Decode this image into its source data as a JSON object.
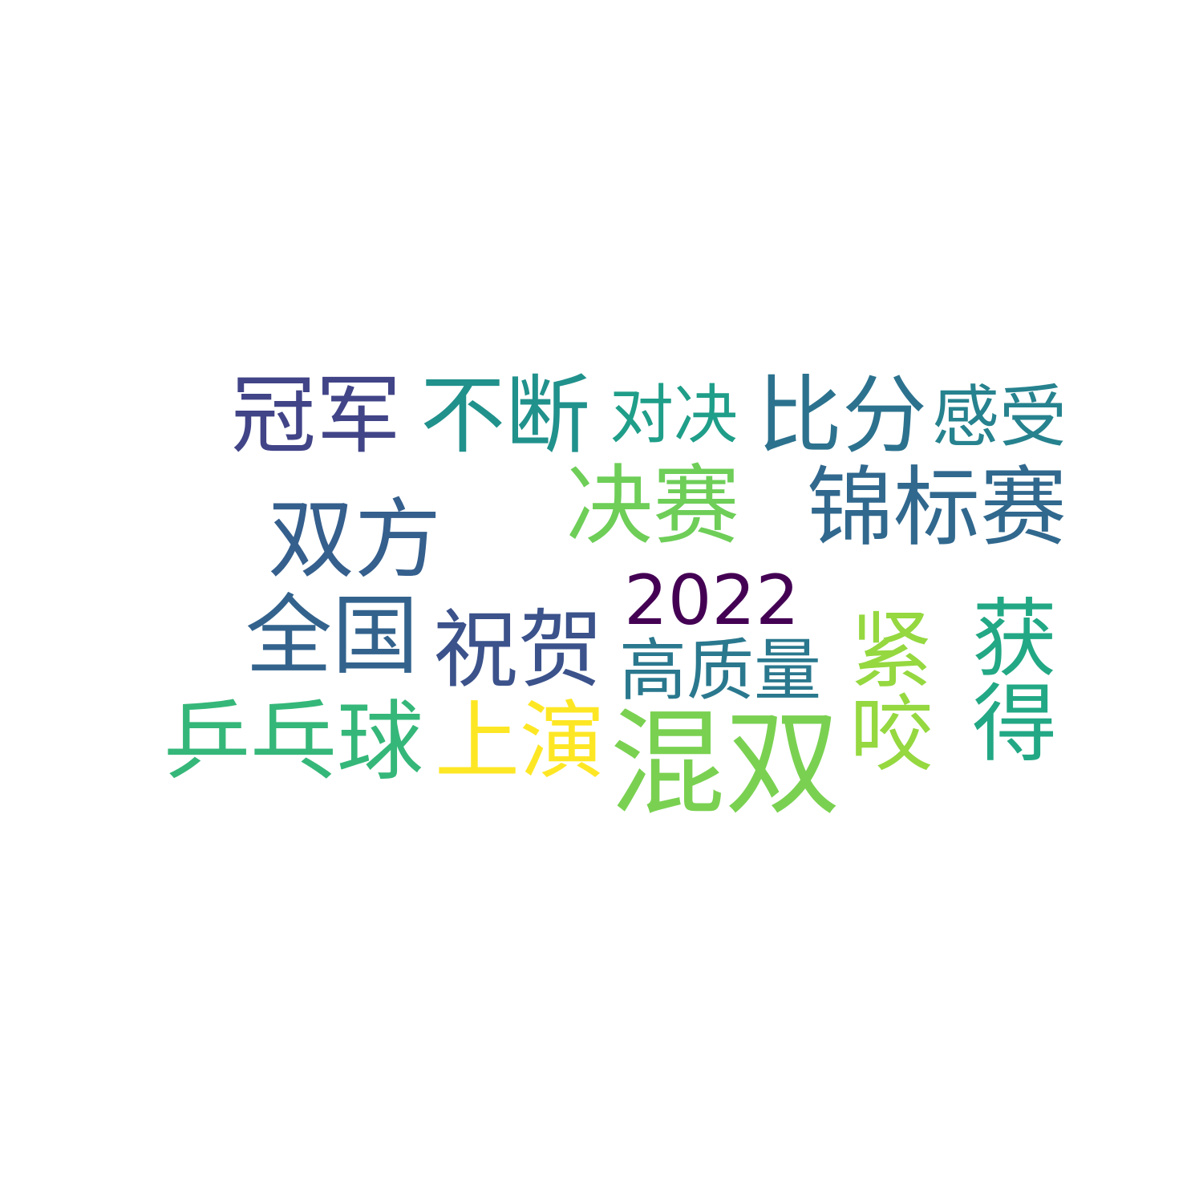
{
  "wordcloud": {
    "background": "#ffffff",
    "words": [
      {
        "text": "冠军",
        "color": "#414487"
      },
      {
        "text": "不断",
        "color": "#21918c"
      },
      {
        "text": "对决",
        "color": "#1f9e89"
      },
      {
        "text": "比分",
        "color": "#2c728e"
      },
      {
        "text": "感受",
        "color": "#26828e"
      },
      {
        "text": "决赛",
        "color": "#6ece58"
      },
      {
        "text": "锦标赛",
        "color": "#31688e"
      },
      {
        "text": "双方",
        "color": "#355f8d"
      },
      {
        "text": "2022",
        "color": "#440154"
      },
      {
        "text": "全国",
        "color": "#33638d"
      },
      {
        "text": "祝贺",
        "color": "#3b528b"
      },
      {
        "text": "高质量",
        "color": "#2a788e"
      },
      {
        "text": "紧咬",
        "color": "#95d840"
      },
      {
        "text": "获得",
        "color": "#22a884"
      },
      {
        "text": "乒乓球",
        "color": "#35b779"
      },
      {
        "text": "上演",
        "color": "#fde725"
      },
      {
        "text": "混双",
        "color": "#7ad151"
      }
    ]
  }
}
